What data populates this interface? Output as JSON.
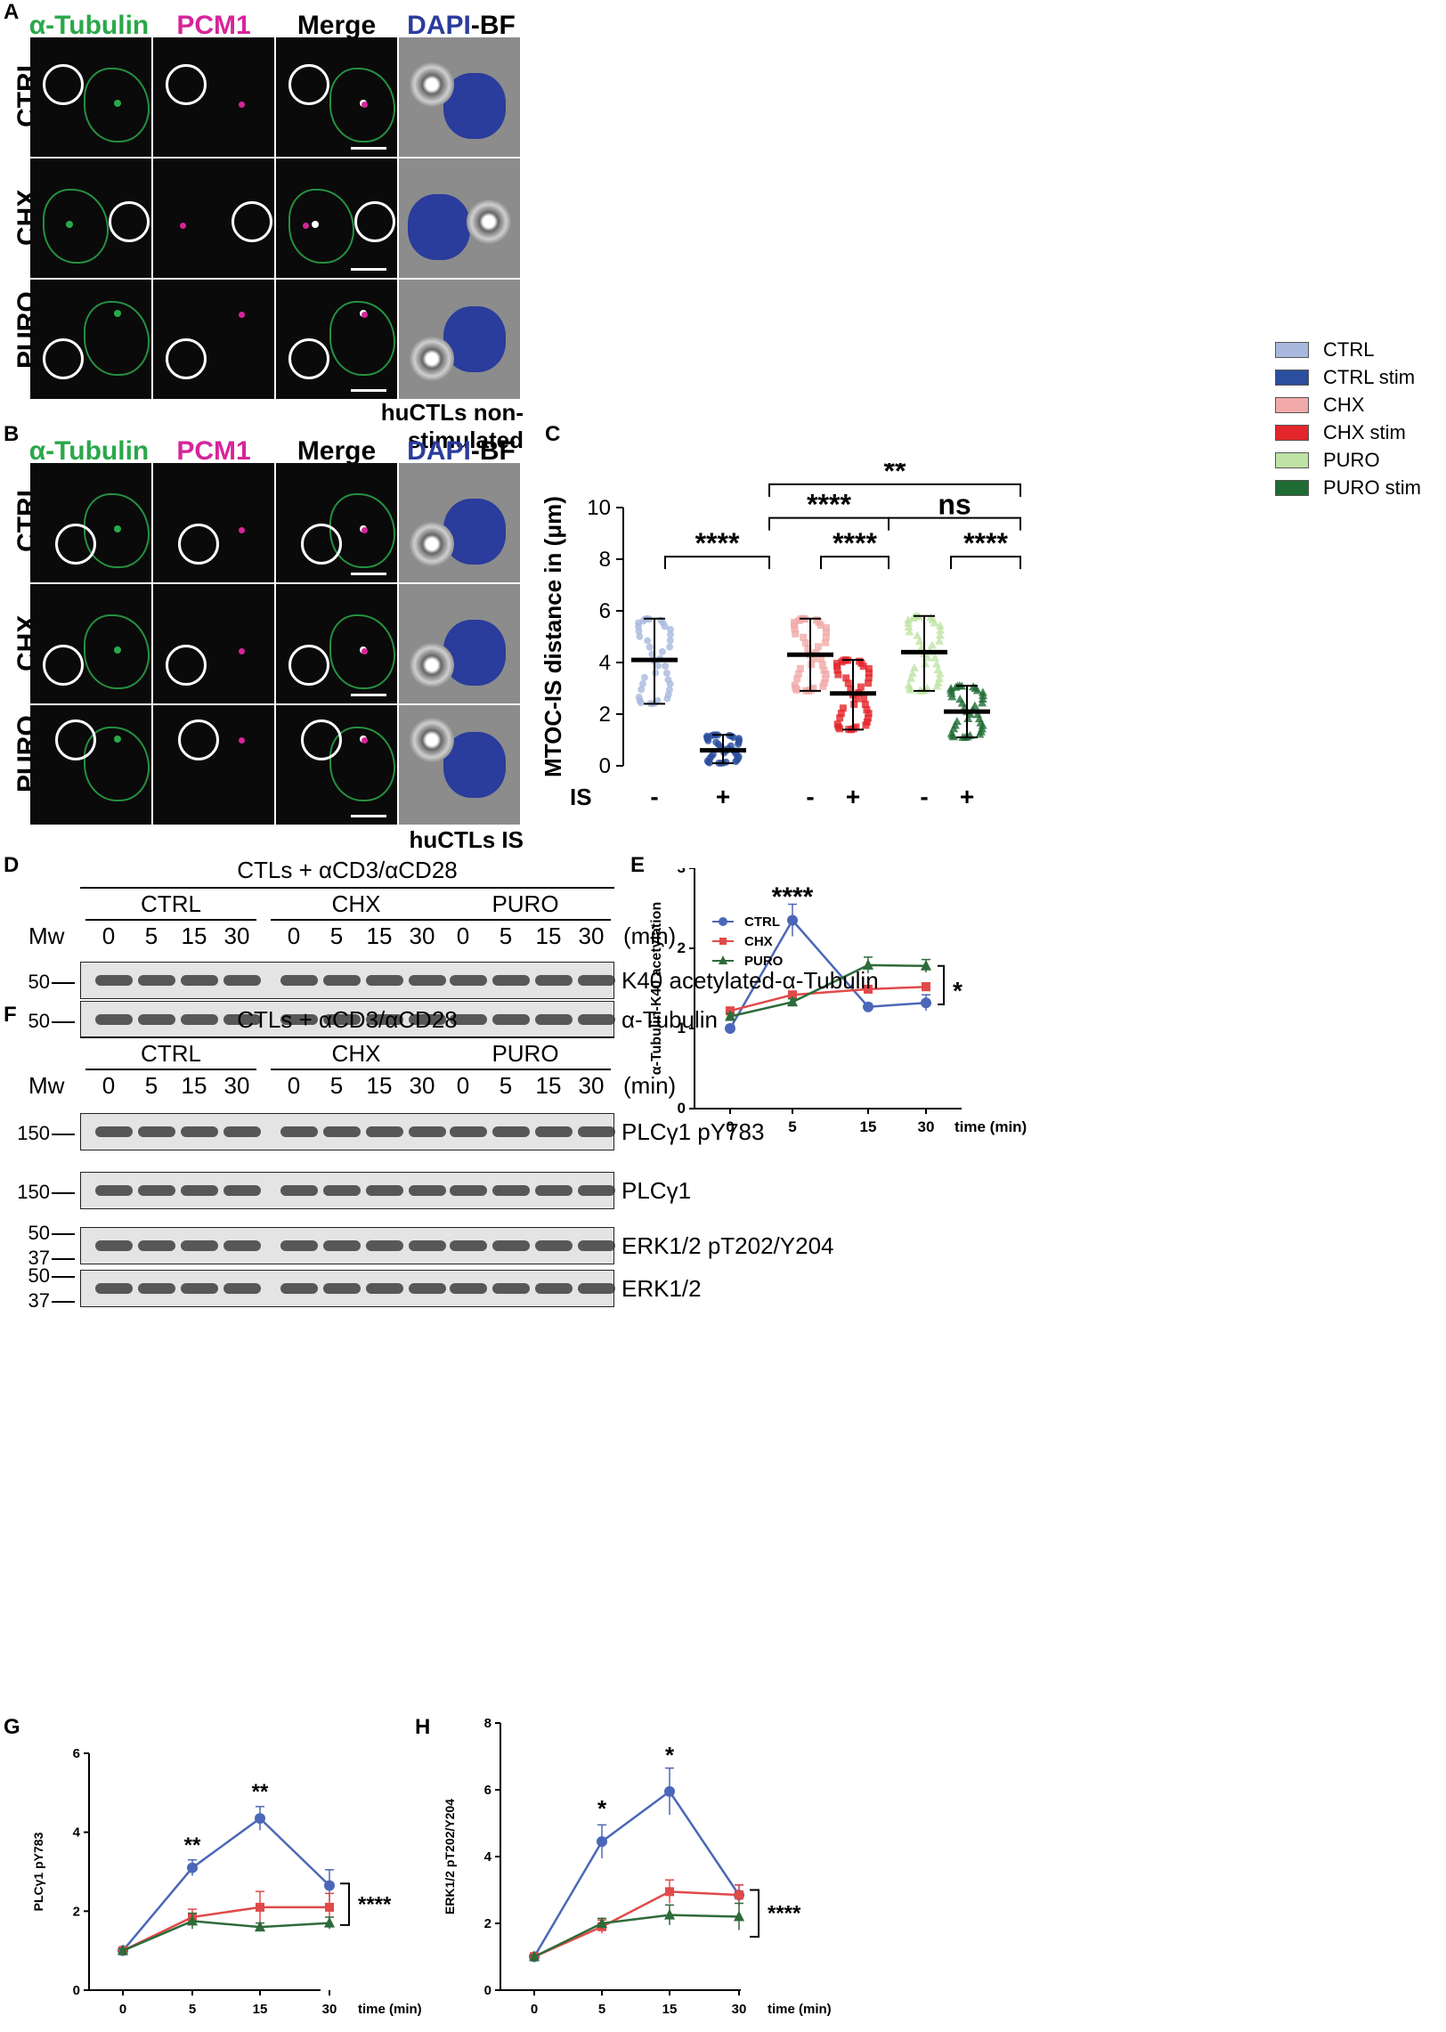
{
  "panels": {
    "A": "A",
    "B": "B",
    "C": "C",
    "D": "D",
    "E": "E",
    "F": "F",
    "G": "G",
    "H": "H"
  },
  "micro_headers": {
    "tubulin": "α-Tubulin",
    "pcm1": "PCM1",
    "merge": "Merge",
    "dapi": "DAPI",
    "bf": "-BF"
  },
  "rows": [
    "CTRL",
    "CHX",
    "PURO"
  ],
  "caption_a": "huCTLs non-stimulated",
  "caption_b": "huCTLs IS",
  "colors": {
    "tubulin": "#2aa84a",
    "pcm1": "#d6259a",
    "dapi": "#2a3c9c",
    "ctrl": "#4b67b8",
    "chx": "#e04a4a",
    "puro": "#2e6b3a"
  },
  "legend": [
    {
      "label": "CTRL",
      "color": "#a9b9dd"
    },
    {
      "label": "CTRL stim",
      "color": "#2b4e9e"
    },
    {
      "label": "CHX",
      "color": "#f1aaa9"
    },
    {
      "label": "CHX stim",
      "color": "#e3262b"
    },
    {
      "label": "PURO",
      "color": "#bfe3a5"
    },
    {
      "label": "PURO stim",
      "color": "#1f6b34"
    }
  ],
  "chart_data": [
    {
      "panel": "C",
      "type": "scatter",
      "ylabel": "MTOC-IS distance in (μm)",
      "xlabel": "IS",
      "ylim": [
        0,
        10
      ],
      "yticks": [
        0,
        2,
        4,
        6,
        8,
        10
      ],
      "categories": [
        "-",
        "+",
        "-",
        "+",
        "-",
        "+"
      ],
      "groups": [
        {
          "name": "CTRL",
          "mean": 4.1,
          "sd_low": 2.4,
          "sd_high": 5.7
        },
        {
          "name": "CTRL stim",
          "mean": 0.6,
          "sd_low": 0.1,
          "sd_high": 1.2
        },
        {
          "name": "CHX",
          "mean": 4.3,
          "sd_low": 2.9,
          "sd_high": 5.7
        },
        {
          "name": "CHX stim",
          "mean": 2.8,
          "sd_low": 1.4,
          "sd_high": 4.1
        },
        {
          "name": "PURO",
          "mean": 4.4,
          "sd_low": 2.9,
          "sd_high": 5.8
        },
        {
          "name": "PURO stim",
          "mean": 2.1,
          "sd_low": 1.1,
          "sd_high": 3.1
        }
      ],
      "significance": [
        "****",
        "****",
        "****",
        "****",
        "**",
        "ns"
      ]
    },
    {
      "panel": "E",
      "type": "line",
      "ylabel": "α-Tubulin-K40 acetylation",
      "xlabel": "time (min)",
      "x": [
        0,
        5,
        15,
        30
      ],
      "ylim": [
        0,
        3
      ],
      "yticks": [
        0,
        1,
        2,
        3
      ],
      "series": [
        {
          "name": "CTRL",
          "values": [
            1.0,
            2.35,
            1.27,
            1.32
          ],
          "err": [
            0.04,
            0.2,
            0.04,
            0.1
          ]
        },
        {
          "name": "CHX",
          "values": [
            1.22,
            1.42,
            1.49,
            1.52
          ],
          "err": [
            0.04,
            0.04,
            0.04,
            0.05
          ]
        },
        {
          "name": "PURO",
          "values": [
            1.15,
            1.33,
            1.79,
            1.78
          ],
          "err": [
            0.04,
            0.04,
            0.1,
            0.08
          ]
        }
      ],
      "annotations": [
        "****",
        "*"
      ]
    },
    {
      "panel": "G",
      "type": "line",
      "ylabel": "PLCγ1 pY783",
      "xlabel": "time (min)",
      "x": [
        0,
        5,
        15,
        30
      ],
      "ylim": [
        0,
        6
      ],
      "yticks": [
        0,
        2,
        4,
        6
      ],
      "series": [
        {
          "name": "CTRL",
          "values": [
            1.0,
            3.1,
            4.35,
            2.65
          ],
          "err": [
            0.05,
            0.2,
            0.3,
            0.4
          ]
        },
        {
          "name": "CHX",
          "values": [
            1.0,
            1.85,
            2.1,
            2.1
          ],
          "err": [
            0.05,
            0.2,
            0.4,
            0.35
          ]
        },
        {
          "name": "PURO",
          "values": [
            1.0,
            1.75,
            1.6,
            1.7
          ],
          "err": [
            0.05,
            0.2,
            0.1,
            0.15
          ]
        }
      ],
      "annotations": [
        "**",
        "**",
        "****"
      ]
    },
    {
      "panel": "H",
      "type": "line",
      "ylabel": "ERK1/2 pT202/Y204",
      "xlabel": "time (min)",
      "x": [
        0,
        5,
        15,
        30
      ],
      "ylim": [
        0,
        8
      ],
      "yticks": [
        0,
        2,
        4,
        6,
        8
      ],
      "series": [
        {
          "name": "CTRL",
          "values": [
            1.0,
            4.45,
            5.95,
            2.85
          ],
          "err": [
            0.05,
            0.5,
            0.7,
            0.3
          ]
        },
        {
          "name": "CHX",
          "values": [
            1.0,
            1.9,
            2.95,
            2.85
          ],
          "err": [
            0.05,
            0.2,
            0.35,
            0.3
          ]
        },
        {
          "name": "PURO",
          "values": [
            1.0,
            2.0,
            2.25,
            2.2
          ],
          "err": [
            0.05,
            0.15,
            0.3,
            0.4
          ]
        }
      ],
      "annotations": [
        "*",
        "*",
        "****"
      ]
    }
  ],
  "western": {
    "title": "CTLs + αCD3/αCD28",
    "groups": [
      "CTRL",
      "CHX",
      "PURO"
    ],
    "mw_label": "Mw",
    "times": [
      "0",
      "5",
      "15",
      "30"
    ],
    "min_label": "(min)",
    "d_bands": [
      {
        "label": "K40 acetylated-α-Tubulin",
        "mw": [
          "50"
        ]
      },
      {
        "label": "α-Tubulin",
        "mw": [
          "50"
        ]
      }
    ],
    "f_bands": [
      {
        "label": "PLCγ1 pY783",
        "mw": [
          "150"
        ]
      },
      {
        "label": "PLCγ1",
        "mw": [
          "150"
        ]
      },
      {
        "label": "ERK1/2 pT202/Y204",
        "mw": [
          "50",
          "37"
        ]
      },
      {
        "label": "ERK1/2",
        "mw": [
          "50",
          "37"
        ]
      }
    ]
  }
}
